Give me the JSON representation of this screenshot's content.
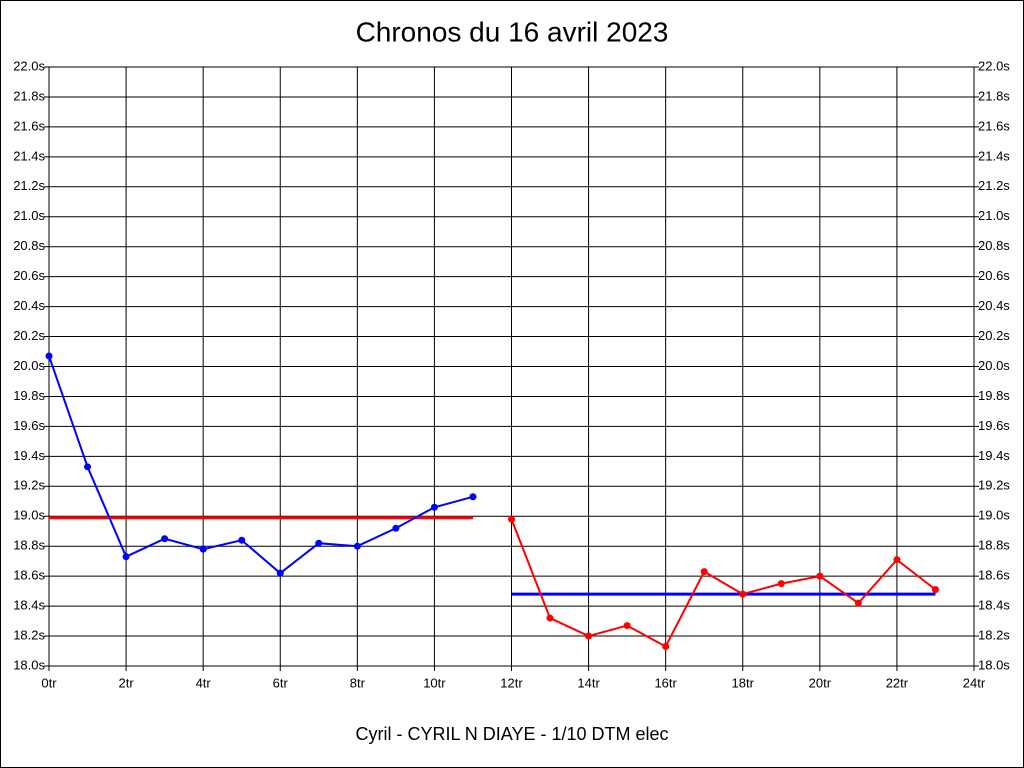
{
  "chart_data": {
    "type": "line",
    "title": "Chronos du 16 avril 2023",
    "xlabel": "Cyril - CYRIL N DIAYE - 1/10 DTM elec",
    "xlim": [
      0,
      24
    ],
    "xticks": [
      {
        "value": 0,
        "label": "0tr"
      },
      {
        "value": 2,
        "label": "2tr"
      },
      {
        "value": 4,
        "label": "4tr"
      },
      {
        "value": 6,
        "label": "6tr"
      },
      {
        "value": 8,
        "label": "8tr"
      },
      {
        "value": 10,
        "label": "10tr"
      },
      {
        "value": 12,
        "label": "12tr"
      },
      {
        "value": 14,
        "label": "14tr"
      },
      {
        "value": 16,
        "label": "16tr"
      },
      {
        "value": 18,
        "label": "18tr"
      },
      {
        "value": 20,
        "label": "20tr"
      },
      {
        "value": 22,
        "label": "22tr"
      },
      {
        "value": 24,
        "label": "24tr"
      }
    ],
    "ylim": [
      18.0,
      22.0
    ],
    "yticks": [
      {
        "value": 18.0,
        "label": "18.0s"
      },
      {
        "value": 18.2,
        "label": "18.2s"
      },
      {
        "value": 18.4,
        "label": "18.4s"
      },
      {
        "value": 18.6,
        "label": "18.6s"
      },
      {
        "value": 18.8,
        "label": "18.8s"
      },
      {
        "value": 19.0,
        "label": "19.0s"
      },
      {
        "value": 19.2,
        "label": "19.2s"
      },
      {
        "value": 19.4,
        "label": "19.4s"
      },
      {
        "value": 19.6,
        "label": "19.6s"
      },
      {
        "value": 19.8,
        "label": "19.8s"
      },
      {
        "value": 20.0,
        "label": "20.0s"
      },
      {
        "value": 20.2,
        "label": "20.2s"
      },
      {
        "value": 20.4,
        "label": "20.4s"
      },
      {
        "value": 20.6,
        "label": "20.6s"
      },
      {
        "value": 20.8,
        "label": "20.8s"
      },
      {
        "value": 21.0,
        "label": "21.0s"
      },
      {
        "value": 21.2,
        "label": "21.2s"
      },
      {
        "value": 21.4,
        "label": "21.4s"
      },
      {
        "value": 21.6,
        "label": "21.6s"
      },
      {
        "value": 21.8,
        "label": "21.8s"
      },
      {
        "value": 22.0,
        "label": "22.0s"
      }
    ],
    "grid": true,
    "series": [
      {
        "color": "#0000ff",
        "x": [
          0,
          1,
          2,
          3,
          4,
          5,
          6,
          7,
          8,
          9,
          10,
          11
        ],
        "values": [
          20.07,
          19.33,
          18.73,
          18.85,
          18.78,
          18.84,
          18.62,
          18.82,
          18.8,
          18.92,
          19.06,
          19.13
        ]
      },
      {
        "color": "#ff0000",
        "x": [
          12,
          13,
          14,
          15,
          16,
          17,
          18,
          19,
          20,
          21,
          22,
          23
        ],
        "values": [
          18.98,
          18.32,
          18.2,
          18.27,
          18.13,
          18.63,
          18.48,
          18.55,
          18.6,
          18.42,
          18.71,
          18.51
        ]
      }
    ],
    "reference_lines": [
      {
        "color": "#ff0000",
        "x": [
          0,
          11
        ],
        "values": [
          18.99,
          18.99
        ]
      },
      {
        "color": "#0000ff",
        "x": [
          12,
          23
        ],
        "values": [
          18.48,
          18.48
        ]
      }
    ]
  }
}
